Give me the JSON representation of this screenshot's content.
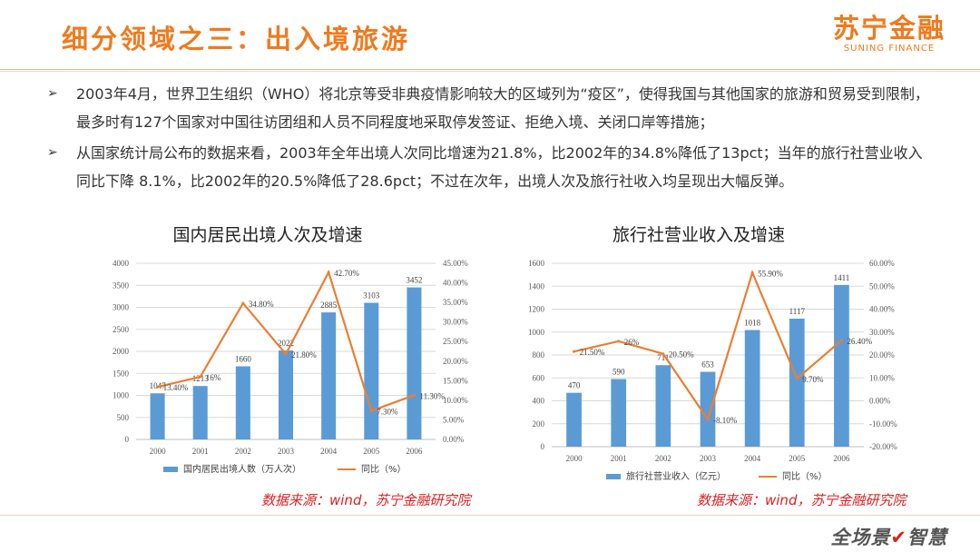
{
  "header": {
    "title": "细分领域之三：出入境旅游",
    "logo_cn": "苏宁金融",
    "logo_en": "SUNING FINANCE"
  },
  "bullets": [
    {
      "marker": "➢",
      "text": "2003年4月，世界卫生组织（WHO）将北京等受非典疫情影响较大的区域列为“疫区”，使得我国与其他国家的旅游和贸易受到限制，最多时有127个国家对中国往访团组和人员不同程度地采取停发签证、拒绝入境、关闭口岸等措施；"
    },
    {
      "marker": "➢",
      "text": "从国家统计局公布的数据来看，2003年全年出境人次同比增速为21.8%，比2002年的34.8%降低了13pct；当年的旅行社营业收入同比下降 8.1%，比2002年的20.5%降低了28.6pct；不过在次年，出境人次及旅行社收入均呈现出大幅反弹。"
    }
  ],
  "colors": {
    "bar": "#5b9bd5",
    "line": "#ed7d31",
    "title": "#f07a1e",
    "source": "#e01e1e"
  },
  "chart_data": [
    {
      "type": "bar",
      "title": "国内居民出境人次及增速",
      "categories": [
        "2000",
        "2001",
        "2002",
        "2003",
        "2004",
        "2005",
        "2006"
      ],
      "series": [
        {
          "name": "国内居民出境人数（万人次）",
          "type": "bar",
          "axis": "left",
          "values": [
            1047,
            1213,
            1660,
            2022,
            2885,
            3103,
            3452
          ],
          "labels": [
            "1047",
            "1213",
            "1660",
            "2022",
            "2885",
            "3103",
            "3452"
          ]
        },
        {
          "name": "同比（%）",
          "type": "line",
          "axis": "right",
          "values": [
            13.4,
            16,
            34.8,
            21.8,
            42.7,
            7.3,
            11.3
          ],
          "labels": [
            "13.40%",
            "16%",
            "34.80%",
            "21.80%",
            "42.70%",
            "7.30%",
            "11.30%"
          ]
        }
      ],
      "ylim": [
        0,
        4000
      ],
      "yticks": [
        "0",
        "500",
        "1000",
        "1500",
        "2000",
        "2500",
        "3000",
        "3500",
        "4000"
      ],
      "y2lim": [
        0,
        45
      ],
      "y2ticks": [
        "0.00%",
        "5.00%",
        "10.00%",
        "15.00%",
        "20.00%",
        "25.00%",
        "30.00%",
        "35.00%",
        "40.00%",
        "45.00%"
      ],
      "legend": "bottom",
      "source": "数据来源：wind，苏宁金融研究院"
    },
    {
      "type": "bar",
      "title": "旅行社营业收入及增速",
      "categories": [
        "2000",
        "2001",
        "2002",
        "2003",
        "2004",
        "2005",
        "2006"
      ],
      "series": [
        {
          "name": "旅行社营业收入（亿元）",
          "type": "bar",
          "axis": "left",
          "values": [
            470,
            590,
            711,
            653,
            1018,
            1117,
            1411
          ],
          "labels": [
            "470",
            "590",
            "711",
            "653",
            "1018",
            "1117",
            "1411"
          ]
        },
        {
          "name": "同比（%）",
          "type": "line",
          "axis": "right",
          "values": [
            21.5,
            26,
            20.5,
            -8.1,
            55.9,
            9.7,
            26.4
          ],
          "labels": [
            "21.50%",
            "26%",
            "20.50%",
            "-8.10%",
            "55.90%",
            "9.70%",
            "26.40%"
          ]
        }
      ],
      "ylim": [
        0,
        1600
      ],
      "yticks": [
        "0",
        "200",
        "400",
        "600",
        "800",
        "1000",
        "1200",
        "1400",
        "1600"
      ],
      "y2lim": [
        -20,
        60
      ],
      "y2ticks": [
        "-20.00%",
        "-10.00%",
        "0.00%",
        "10.00%",
        "20.00%",
        "30.00%",
        "40.00%",
        "50.00%",
        "60.00%"
      ],
      "legend": "bottom",
      "source": "数据来源：wind，苏宁金融研究院"
    }
  ],
  "footer": {
    "slogan_pre": "全场景",
    "slogan_mark": "✔",
    "slogan_post": "智慧"
  }
}
